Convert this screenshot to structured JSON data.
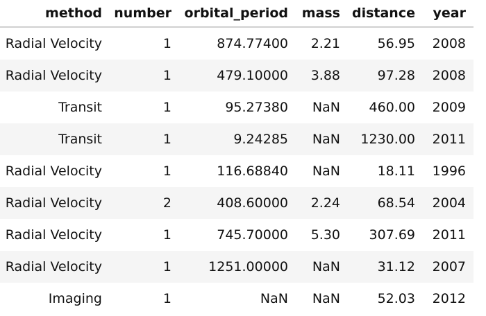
{
  "table": {
    "columns": [
      "method",
      "number",
      "orbital_period",
      "mass",
      "distance",
      "year"
    ],
    "rows": [
      [
        "Radial Velocity",
        "1",
        "874.77400",
        "2.21",
        "56.95",
        "2008"
      ],
      [
        "Radial Velocity",
        "1",
        "479.10000",
        "3.88",
        "97.28",
        "2008"
      ],
      [
        "Transit",
        "1",
        "95.27380",
        "NaN",
        "460.00",
        "2009"
      ],
      [
        "Transit",
        "1",
        "9.24285",
        "NaN",
        "1230.00",
        "2011"
      ],
      [
        "Radial Velocity",
        "1",
        "116.68840",
        "NaN",
        "18.11",
        "1996"
      ],
      [
        "Radial Velocity",
        "2",
        "408.60000",
        "2.24",
        "68.54",
        "2004"
      ],
      [
        "Radial Velocity",
        "1",
        "745.70000",
        "5.30",
        "307.69",
        "2011"
      ],
      [
        "Radial Velocity",
        "1",
        "1251.00000",
        "NaN",
        "31.12",
        "2007"
      ],
      [
        "Imaging",
        "1",
        "NaN",
        "NaN",
        "52.03",
        "2012"
      ]
    ]
  }
}
